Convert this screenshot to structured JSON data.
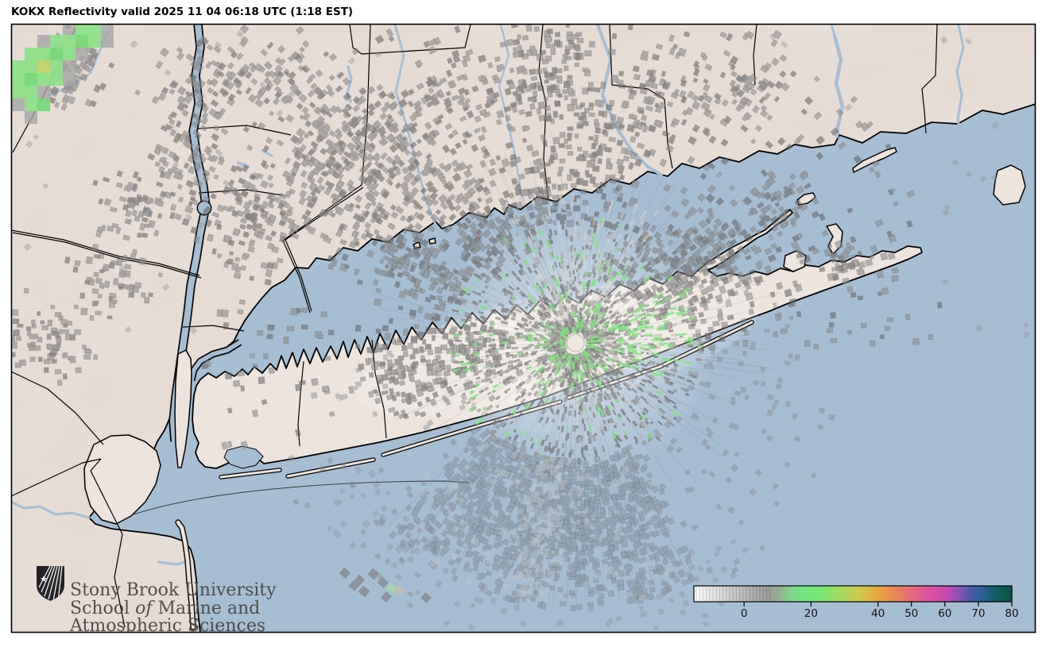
{
  "title": "KOKX Reflectivity valid 2025 11 04 06:18 UTC (1:18 EST)",
  "radar": {
    "station": "KOKX",
    "product": "Reflectivity"
  },
  "logo": {
    "line1": "Stony Brook University",
    "line2_a": "School ",
    "line2_b": "of",
    "line2_c": " Marine and",
    "line3": "Atmospheric Sciences"
  },
  "colorbar": {
    "vmin": -15,
    "vmax": 80,
    "ticks": [
      0,
      20,
      40,
      50,
      60,
      70,
      80
    ],
    "stops": [
      [
        -15,
        "#fdfdfd"
      ],
      [
        -10,
        "#e9e9e9"
      ],
      [
        -5,
        "#d2d2d2"
      ],
      [
        0,
        "#bababa"
      ],
      [
        4,
        "#a9a9a9"
      ],
      [
        7,
        "#9d9d9d"
      ],
      [
        10,
        "#95ab92"
      ],
      [
        14,
        "#83d48a"
      ],
      [
        18,
        "#72e680"
      ],
      [
        22,
        "#77e675"
      ],
      [
        26,
        "#8ee069"
      ],
      [
        30,
        "#aed75d"
      ],
      [
        34,
        "#ccca4e"
      ],
      [
        38,
        "#e0b442"
      ],
      [
        41,
        "#e69f44"
      ],
      [
        45,
        "#e78755"
      ],
      [
        48,
        "#e7786a"
      ],
      [
        51,
        "#e56683"
      ],
      [
        54,
        "#df559b"
      ],
      [
        58,
        "#d44da7"
      ],
      [
        61,
        "#bb4bae"
      ],
      [
        64,
        "#8e51b2"
      ],
      [
        66,
        "#6b56af"
      ],
      [
        68,
        "#4a5aa5"
      ],
      [
        70,
        "#33619d"
      ],
      [
        72,
        "#265f8d"
      ],
      [
        74,
        "#175e74"
      ],
      [
        76,
        "#115c5e"
      ],
      [
        78,
        "#0e564e"
      ],
      [
        80,
        "#0b4f41"
      ]
    ]
  },
  "map_colors": {
    "water": "#a6bed4",
    "land": "#e7ded7",
    "land_light": "#ece4dd",
    "coast": "#000000",
    "boundary": "#000000",
    "river": "#a6bed4",
    "clutter_dark": "#5f5f5f",
    "clutter_mid": "#8a8a8a",
    "clutter_light": "#b9b3ad",
    "clutter_pale": "#d9d3cd",
    "clutter_green": "#7fe57f",
    "sea_clutter": "#79818a",
    "echo_green": "#8fe08a",
    "echo_green2": "#79d878",
    "echo_yellow": "#c3d56a",
    "echo_gray": "#a6a6a6",
    "radar_dot": "#efe9e2"
  }
}
